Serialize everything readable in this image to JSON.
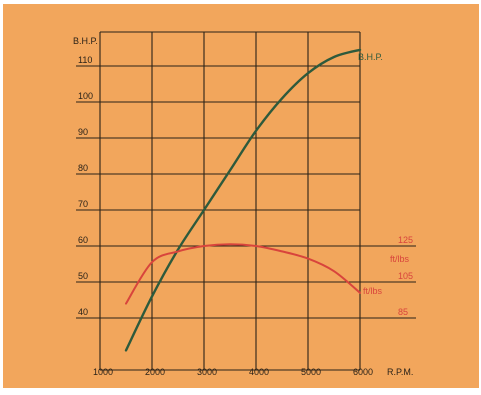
{
  "chart_data": {
    "type": "line",
    "x": [
      1500,
      2000,
      2500,
      3000,
      3500,
      4000,
      4500,
      5000,
      5500,
      6000
    ],
    "xlabel": "R.P.M.",
    "x_ticks": [
      "1000",
      "2000",
      "3000",
      "4000",
      "5000",
      "6000"
    ],
    "xlim": [
      1000,
      6000
    ],
    "ylabel": "B.H.P.",
    "y_ticks": [
      "40",
      "50",
      "60",
      "70",
      "80",
      "90",
      "100",
      "110"
    ],
    "ylim": [
      30,
      115
    ],
    "y2label": "ft/lbs",
    "y2_ticks": [
      "85",
      "105",
      "125"
    ],
    "y2lim": [
      45,
      215
    ],
    "grid": true,
    "series": [
      {
        "name": "B.H.P.",
        "axis": "left",
        "color": "#2e5a3c",
        "values": [
          31,
          46,
          59,
          70,
          81,
          92,
          101,
          108,
          112.5,
          114.5
        ]
      },
      {
        "name": "ft/lbs",
        "axis": "right",
        "color": "#d8443c",
        "values": [
          93,
          116,
          122,
          125,
          126,
          125,
          122,
          118,
          111,
          99
        ]
      }
    ],
    "colors": {
      "paper": "#f2a65c",
      "grid": "#2a2218",
      "label": "#2a2218",
      "torque": "#d8443c",
      "power": "#2e5a3c"
    }
  }
}
